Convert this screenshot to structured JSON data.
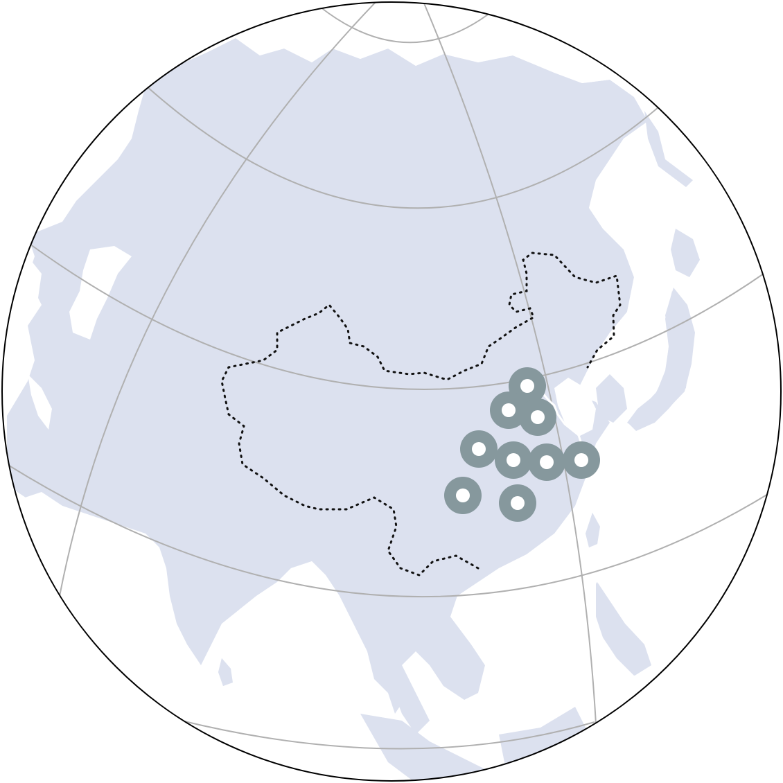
{
  "colors": {
    "background": "#ffffff",
    "land": "#dce1ef",
    "graticule": "#b0b0b0",
    "globe_outline": "#000000",
    "boundary": "#111111",
    "marker_ring": "#86989d",
    "marker_center": "#ffffff",
    "coast_highlight": "#ffffff"
  },
  "map": {
    "projection": "orthographic",
    "region": "China",
    "boundary_style": "dotted"
  },
  "markers": [
    {
      "id": "marker-1"
    },
    {
      "id": "marker-2"
    },
    {
      "id": "marker-3"
    },
    {
      "id": "marker-4"
    },
    {
      "id": "marker-5"
    },
    {
      "id": "marker-6"
    },
    {
      "id": "marker-7"
    },
    {
      "id": "marker-8"
    },
    {
      "id": "marker-9"
    },
    {
      "id": "marker-10"
    }
  ]
}
